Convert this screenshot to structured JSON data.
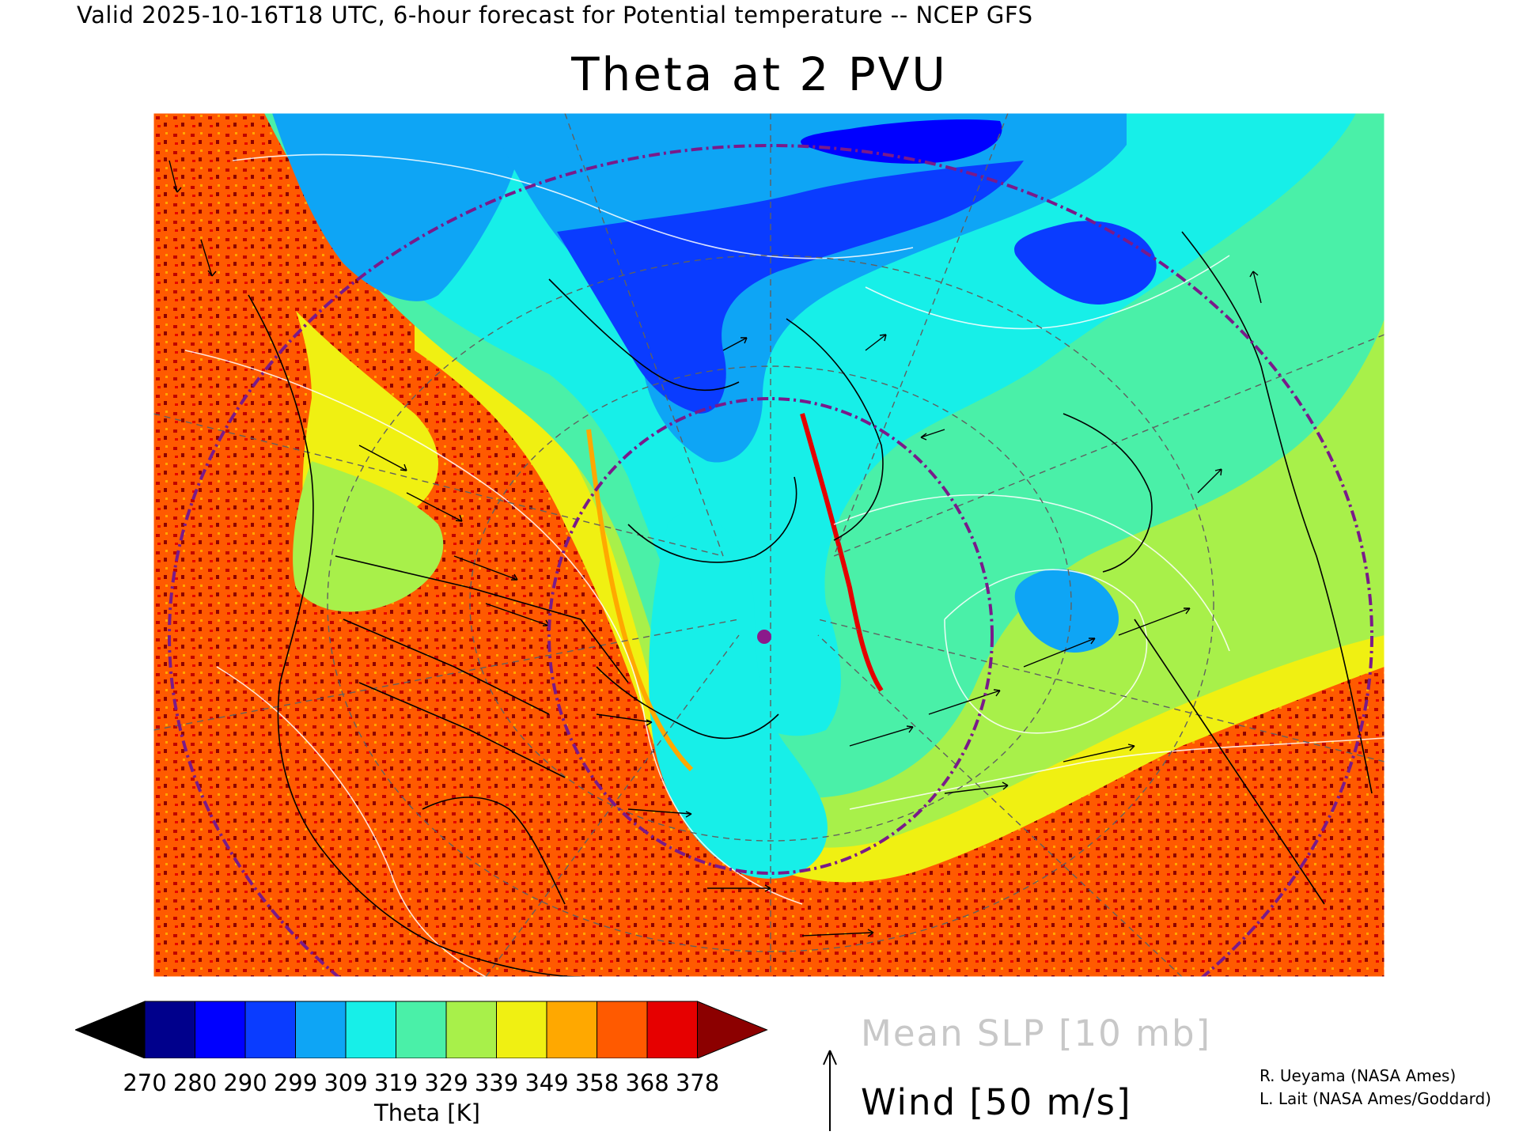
{
  "header": {
    "valid_line": "Valid 2025-10-16T18 UTC, 6-hour forecast for Potential temperature -- NCEP GFS"
  },
  "title": "Theta at 2 PVU",
  "colorbar": {
    "title": "Theta [K]",
    "tick_labels": [
      "270",
      "280",
      "290",
      "299",
      "309",
      "319",
      "329",
      "339",
      "349",
      "358",
      "368",
      "378"
    ],
    "colors": [
      "#000000",
      "#00008c",
      "#0000ff",
      "#0a3cff",
      "#0ea5f5",
      "#17efe8",
      "#4af0a8",
      "#a8f04a",
      "#f0f012",
      "#ffa800",
      "#ff5a00",
      "#e60000",
      "#8c0000"
    ]
  },
  "legend": {
    "slp_label": "Mean SLP [10 mb]",
    "wind_label": "Wind [50 m/s]"
  },
  "credits": {
    "line1": "R. Ueyama (NASA Ames)",
    "line2": "L. Lait (NASA Ames/Goddard)"
  },
  "map": {
    "projection": "polar-stereographic North Atlantic sector",
    "variable": "Potential temperature on 2 PVU surface",
    "marker_color": "#8b1a8b",
    "range_ring_color": "#7a1a8a"
  }
}
